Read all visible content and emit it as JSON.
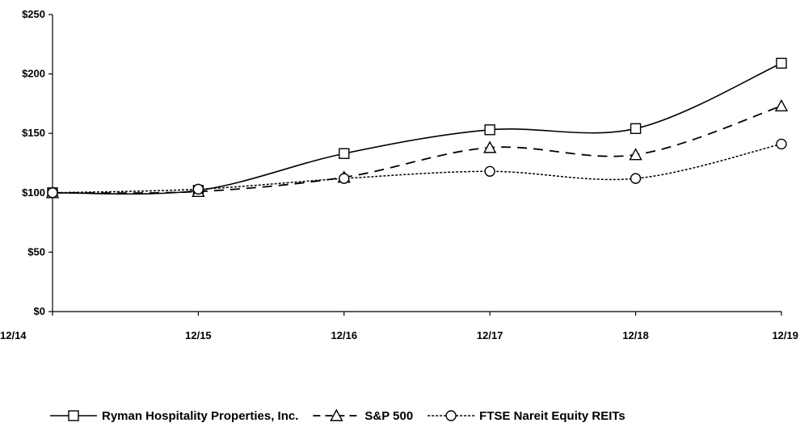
{
  "chart_data": {
    "type": "line",
    "categories": [
      "12/14",
      "12/15",
      "12/16",
      "12/17",
      "12/18",
      "12/19"
    ],
    "y_ticks": [
      "$0",
      "$50",
      "$100",
      "$150",
      "$200",
      "$250"
    ],
    "ylim": [
      0,
      250
    ],
    "grid": false,
    "legend_position": "bottom",
    "series": [
      {
        "name": "Ryman Hospitality Properties, Inc.",
        "marker": "square",
        "dash": "solid",
        "values": [
          100,
          102,
          133,
          153,
          154,
          209
        ]
      },
      {
        "name": "S&P 500",
        "marker": "triangle",
        "dash": "dashed",
        "values": [
          100,
          101,
          113,
          138,
          132,
          173
        ]
      },
      {
        "name": "FTSE Nareit Equity REITs",
        "marker": "circle",
        "dash": "dotted",
        "values": [
          100,
          103,
          112,
          118,
          112,
          141
        ]
      }
    ]
  }
}
